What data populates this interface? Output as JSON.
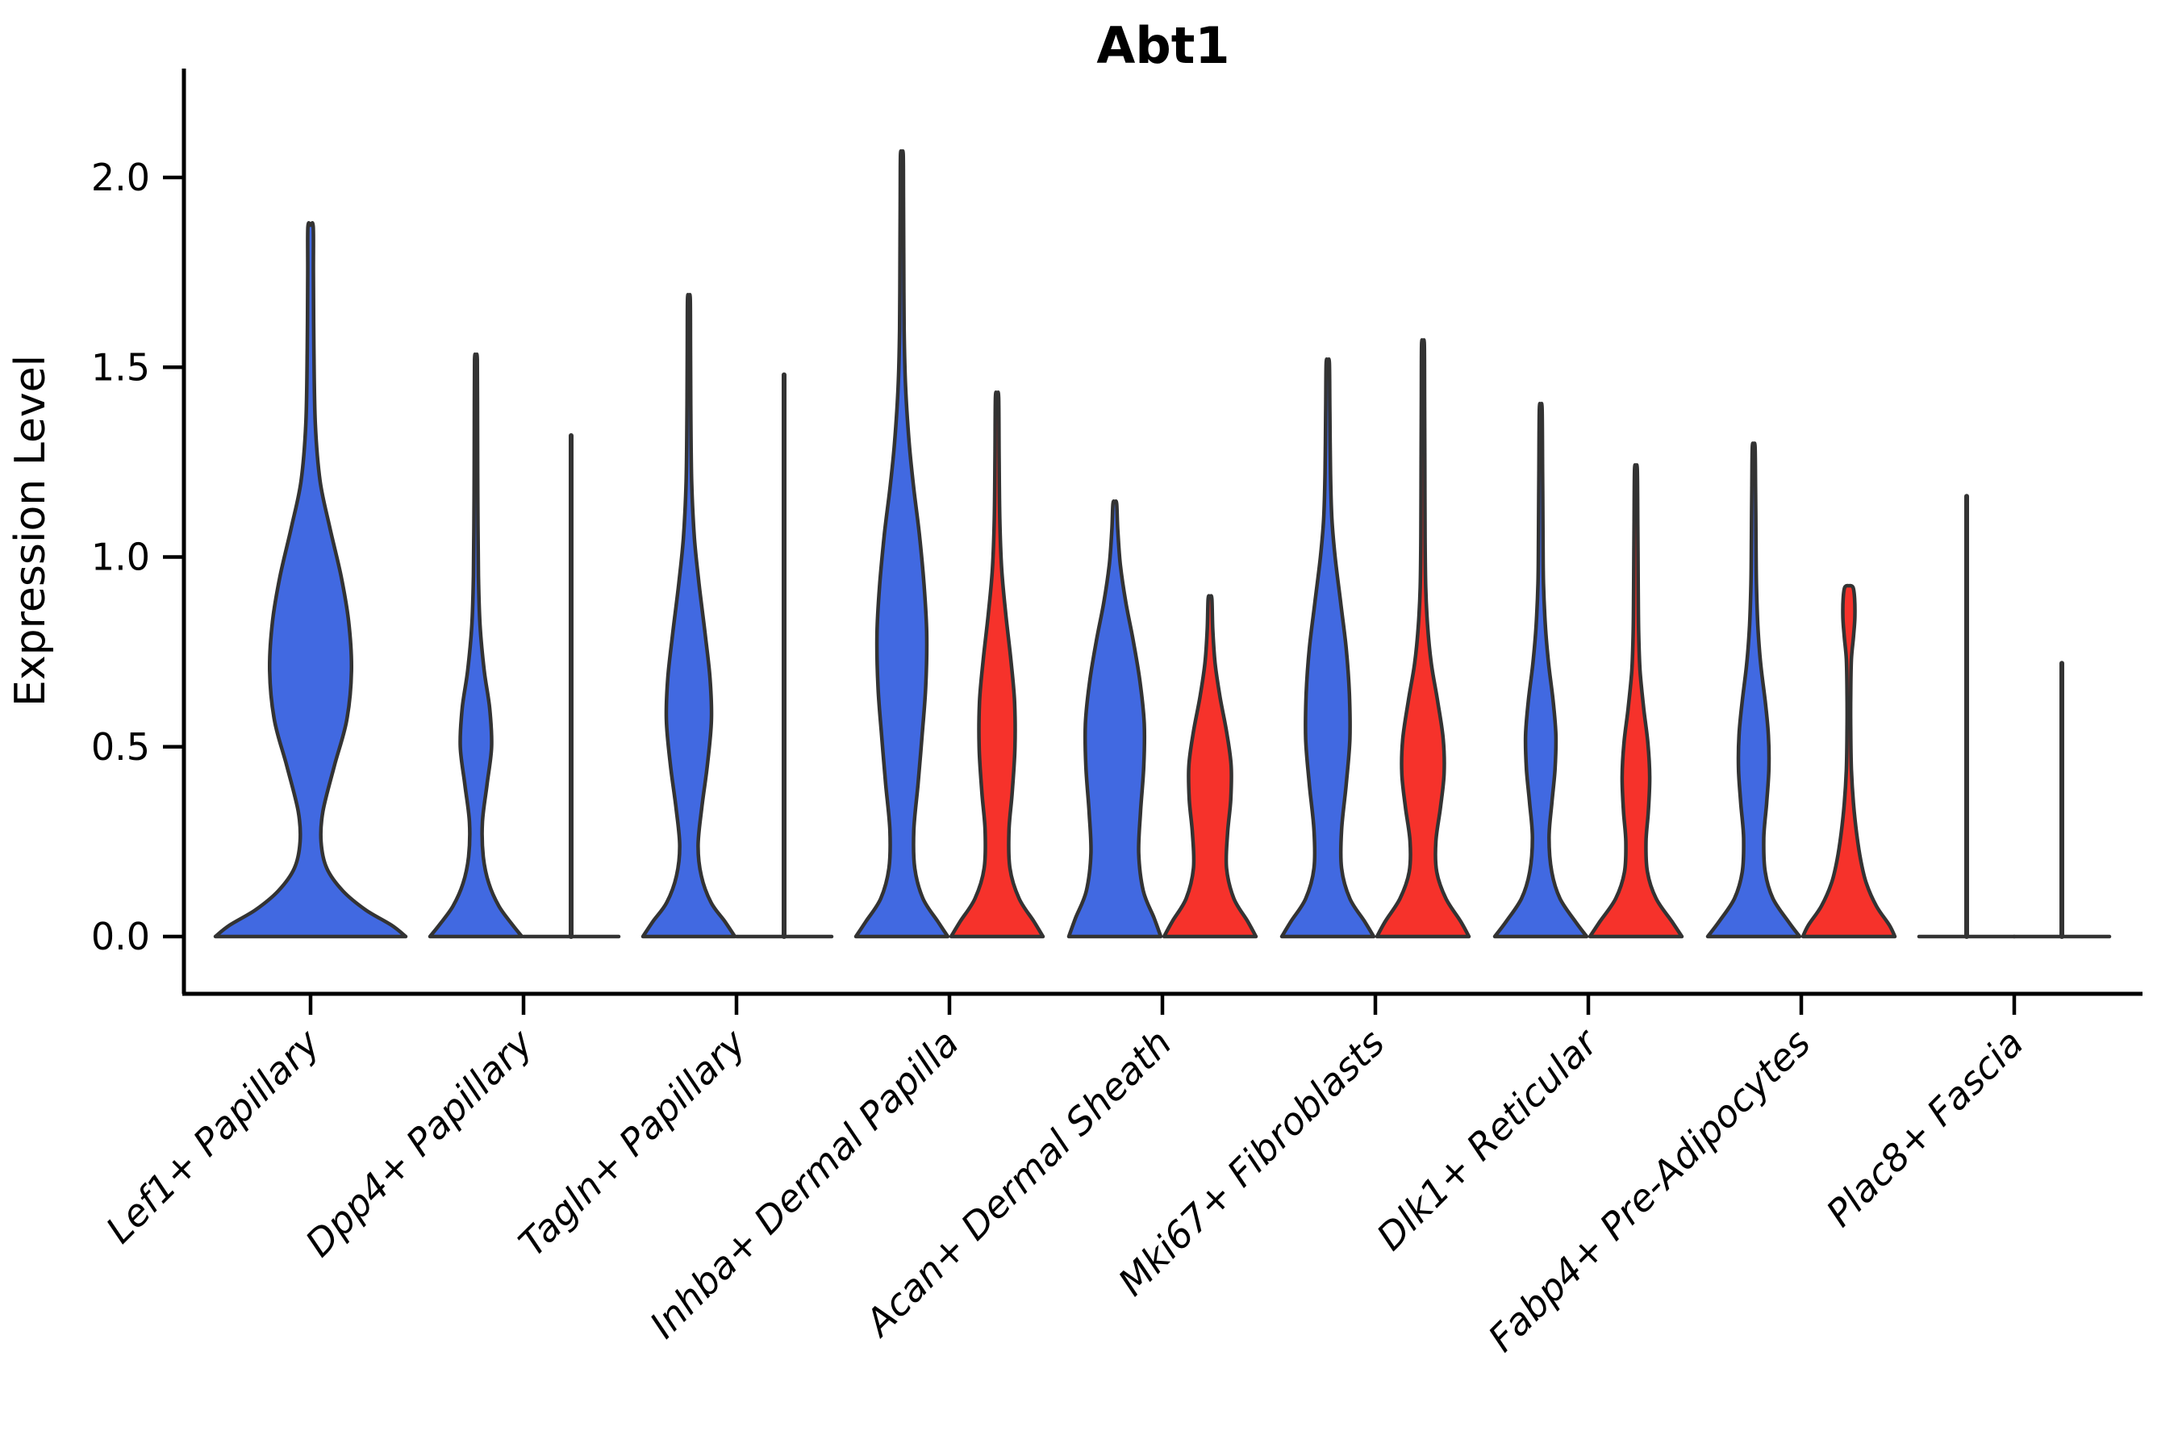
{
  "figure": {
    "background": "#ffffff"
  },
  "chart_data": {
    "type": "violin",
    "title": "Abt1",
    "ylabel": "Expression Level",
    "xlabel": "",
    "y_ticks": [
      "0.0",
      "0.5",
      "1.0",
      "1.5",
      "2.0"
    ],
    "y_tick_values": [
      0.0,
      0.5,
      1.0,
      1.5,
      2.0
    ],
    "ylim": [
      0.0,
      2.29
    ],
    "grid": false,
    "legend_position": "none",
    "categories": [
      "Lef1+ Papillary",
      "Dpp4+ Papillary",
      "Tagln+ Papillary",
      "Inhba+ Dermal Papilla",
      "Acan+ Dermal Sheath",
      "Mki67+ Fibroblasts",
      "Dlk1+ Reticular",
      "Fabp4+ Pre-Adipocytes",
      "Plac8+ Fascia"
    ],
    "series": [
      {
        "name": "blue",
        "color": "#4169E1"
      },
      {
        "name": "red",
        "color": "#F6322B"
      }
    ],
    "outline_color": "#333333",
    "axis_color": "#000000",
    "violins": [
      {
        "category": "Lef1+ Papillary",
        "series": "blue",
        "layout": "single",
        "collapsed": false,
        "max": 1.87,
        "profile": [
          [
            0,
            1.0
          ],
          [
            0.03,
            0.85
          ],
          [
            0.07,
            0.58
          ],
          [
            0.12,
            0.34
          ],
          [
            0.18,
            0.17
          ],
          [
            0.25,
            0.11
          ],
          [
            0.33,
            0.13
          ],
          [
            0.45,
            0.25
          ],
          [
            0.57,
            0.38
          ],
          [
            0.7,
            0.43
          ],
          [
            0.83,
            0.4
          ],
          [
            0.95,
            0.32
          ],
          [
            1.08,
            0.2
          ],
          [
            1.2,
            0.1
          ],
          [
            1.35,
            0.05
          ],
          [
            1.55,
            0.035
          ],
          [
            1.75,
            0.03
          ],
          [
            1.87,
            0.028
          ]
        ]
      },
      {
        "category": "Dpp4+ Papillary",
        "series": "blue",
        "layout": "left",
        "collapsed": false,
        "max": 1.52,
        "profile": [
          [
            0,
            1.0
          ],
          [
            0.03,
            0.8
          ],
          [
            0.08,
            0.5
          ],
          [
            0.14,
            0.28
          ],
          [
            0.21,
            0.16
          ],
          [
            0.3,
            0.14
          ],
          [
            0.4,
            0.24
          ],
          [
            0.5,
            0.34
          ],
          [
            0.6,
            0.3
          ],
          [
            0.7,
            0.18
          ],
          [
            0.82,
            0.09
          ],
          [
            0.95,
            0.055
          ],
          [
            1.15,
            0.04
          ],
          [
            1.35,
            0.035
          ],
          [
            1.52,
            0.03
          ]
        ]
      },
      {
        "category": "Dpp4+ Papillary",
        "series": "red",
        "layout": "right",
        "collapsed": true,
        "max": 1.32,
        "profile": []
      },
      {
        "category": "Tagln+ Papillary",
        "series": "blue",
        "layout": "left",
        "collapsed": false,
        "max": 1.68,
        "profile": [
          [
            0,
            1.0
          ],
          [
            0.04,
            0.78
          ],
          [
            0.09,
            0.48
          ],
          [
            0.16,
            0.27
          ],
          [
            0.24,
            0.2
          ],
          [
            0.34,
            0.28
          ],
          [
            0.45,
            0.4
          ],
          [
            0.57,
            0.49
          ],
          [
            0.68,
            0.46
          ],
          [
            0.8,
            0.35
          ],
          [
            0.93,
            0.22
          ],
          [
            1.05,
            0.12
          ],
          [
            1.2,
            0.06
          ],
          [
            1.4,
            0.04
          ],
          [
            1.55,
            0.035
          ],
          [
            1.68,
            0.03
          ]
        ]
      },
      {
        "category": "Tagln+ Papillary",
        "series": "red",
        "layout": "right",
        "collapsed": true,
        "max": 1.48,
        "profile": []
      },
      {
        "category": "Inhba+ Dermal Papilla",
        "series": "blue",
        "layout": "left",
        "collapsed": false,
        "max": 2.06,
        "profile": [
          [
            0,
            1.0
          ],
          [
            0.04,
            0.78
          ],
          [
            0.1,
            0.46
          ],
          [
            0.18,
            0.28
          ],
          [
            0.28,
            0.26
          ],
          [
            0.4,
            0.35
          ],
          [
            0.53,
            0.44
          ],
          [
            0.66,
            0.52
          ],
          [
            0.8,
            0.54
          ],
          [
            0.93,
            0.48
          ],
          [
            1.06,
            0.38
          ],
          [
            1.18,
            0.26
          ],
          [
            1.3,
            0.16
          ],
          [
            1.45,
            0.08
          ],
          [
            1.6,
            0.05
          ],
          [
            1.8,
            0.04
          ],
          [
            1.95,
            0.035
          ],
          [
            2.06,
            0.03
          ]
        ]
      },
      {
        "category": "Inhba+ Dermal Papilla",
        "series": "red",
        "layout": "right",
        "collapsed": false,
        "max": 1.42,
        "profile": [
          [
            0,
            1.0
          ],
          [
            0.04,
            0.8
          ],
          [
            0.1,
            0.48
          ],
          [
            0.18,
            0.28
          ],
          [
            0.28,
            0.26
          ],
          [
            0.38,
            0.33
          ],
          [
            0.5,
            0.39
          ],
          [
            0.62,
            0.38
          ],
          [
            0.73,
            0.3
          ],
          [
            0.85,
            0.19
          ],
          [
            0.97,
            0.1
          ],
          [
            1.1,
            0.06
          ],
          [
            1.25,
            0.045
          ],
          [
            1.42,
            0.035
          ]
        ]
      },
      {
        "category": "Acan+ Dermal Sheath",
        "series": "blue",
        "layout": "left",
        "collapsed": false,
        "max": 1.14,
        "profile": [
          [
            0,
            1.0
          ],
          [
            0.05,
            0.85
          ],
          [
            0.12,
            0.62
          ],
          [
            0.22,
            0.52
          ],
          [
            0.33,
            0.56
          ],
          [
            0.45,
            0.63
          ],
          [
            0.56,
            0.64
          ],
          [
            0.67,
            0.55
          ],
          [
            0.78,
            0.4
          ],
          [
            0.88,
            0.24
          ],
          [
            0.98,
            0.12
          ],
          [
            1.07,
            0.065
          ],
          [
            1.14,
            0.04
          ]
        ]
      },
      {
        "category": "Acan+ Dermal Sheath",
        "series": "red",
        "layout": "right",
        "collapsed": false,
        "max": 0.89,
        "profile": [
          [
            0,
            1.0
          ],
          [
            0.04,
            0.82
          ],
          [
            0.1,
            0.52
          ],
          [
            0.18,
            0.36
          ],
          [
            0.27,
            0.38
          ],
          [
            0.36,
            0.45
          ],
          [
            0.45,
            0.46
          ],
          [
            0.54,
            0.36
          ],
          [
            0.63,
            0.22
          ],
          [
            0.72,
            0.11
          ],
          [
            0.81,
            0.06
          ],
          [
            0.89,
            0.04
          ]
        ]
      },
      {
        "category": "Mki67+ Fibroblasts",
        "series": "blue",
        "layout": "left",
        "collapsed": false,
        "max": 1.51,
        "profile": [
          [
            0,
            1.0
          ],
          [
            0.04,
            0.8
          ],
          [
            0.1,
            0.48
          ],
          [
            0.18,
            0.3
          ],
          [
            0.28,
            0.3
          ],
          [
            0.4,
            0.4
          ],
          [
            0.52,
            0.48
          ],
          [
            0.64,
            0.47
          ],
          [
            0.76,
            0.4
          ],
          [
            0.88,
            0.28
          ],
          [
            1.0,
            0.16
          ],
          [
            1.1,
            0.09
          ],
          [
            1.22,
            0.06
          ],
          [
            1.38,
            0.045
          ],
          [
            1.51,
            0.035
          ]
        ]
      },
      {
        "category": "Mki67+ Fibroblasts",
        "series": "red",
        "layout": "right",
        "collapsed": false,
        "max": 1.56,
        "profile": [
          [
            0,
            1.0
          ],
          [
            0.04,
            0.82
          ],
          [
            0.1,
            0.5
          ],
          [
            0.17,
            0.3
          ],
          [
            0.25,
            0.28
          ],
          [
            0.34,
            0.38
          ],
          [
            0.43,
            0.46
          ],
          [
            0.52,
            0.44
          ],
          [
            0.62,
            0.32
          ],
          [
            0.72,
            0.18
          ],
          [
            0.82,
            0.1
          ],
          [
            0.92,
            0.06
          ],
          [
            1.05,
            0.045
          ],
          [
            1.25,
            0.04
          ],
          [
            1.42,
            0.035
          ],
          [
            1.56,
            0.03
          ]
        ]
      },
      {
        "category": "Dlk1+ Reticular",
        "series": "blue",
        "layout": "left",
        "collapsed": false,
        "max": 1.39,
        "profile": [
          [
            0,
            1.0
          ],
          [
            0.04,
            0.75
          ],
          [
            0.1,
            0.42
          ],
          [
            0.17,
            0.24
          ],
          [
            0.26,
            0.18
          ],
          [
            0.35,
            0.24
          ],
          [
            0.44,
            0.31
          ],
          [
            0.53,
            0.33
          ],
          [
            0.62,
            0.27
          ],
          [
            0.72,
            0.17
          ],
          [
            0.82,
            0.1
          ],
          [
            0.93,
            0.06
          ],
          [
            1.05,
            0.05
          ],
          [
            1.22,
            0.04
          ],
          [
            1.39,
            0.03
          ]
        ]
      },
      {
        "category": "Dlk1+ Reticular",
        "series": "red",
        "layout": "right",
        "collapsed": false,
        "max": 1.23,
        "profile": [
          [
            0,
            1.0
          ],
          [
            0.04,
            0.78
          ],
          [
            0.1,
            0.44
          ],
          [
            0.17,
            0.25
          ],
          [
            0.25,
            0.22
          ],
          [
            0.33,
            0.27
          ],
          [
            0.42,
            0.3
          ],
          [
            0.51,
            0.26
          ],
          [
            0.6,
            0.17
          ],
          [
            0.7,
            0.09
          ],
          [
            0.8,
            0.06
          ],
          [
            0.92,
            0.05
          ],
          [
            1.08,
            0.04
          ],
          [
            1.23,
            0.03
          ]
        ]
      },
      {
        "category": "Fabp4+ Pre-Adipocytes",
        "series": "blue",
        "layout": "left",
        "collapsed": false,
        "max": 1.29,
        "profile": [
          [
            0,
            1.0
          ],
          [
            0.04,
            0.75
          ],
          [
            0.1,
            0.42
          ],
          [
            0.17,
            0.25
          ],
          [
            0.26,
            0.22
          ],
          [
            0.35,
            0.28
          ],
          [
            0.44,
            0.33
          ],
          [
            0.53,
            0.32
          ],
          [
            0.62,
            0.25
          ],
          [
            0.72,
            0.15
          ],
          [
            0.82,
            0.09
          ],
          [
            0.93,
            0.06
          ],
          [
            1.05,
            0.05
          ],
          [
            1.18,
            0.04
          ],
          [
            1.29,
            0.03
          ]
        ]
      },
      {
        "category": "Fabp4+ Pre-Adipocytes",
        "series": "red",
        "layout": "right",
        "collapsed": false,
        "max": 0.92,
        "profile": [
          [
            0,
            1.0
          ],
          [
            0.03,
            0.88
          ],
          [
            0.08,
            0.6
          ],
          [
            0.14,
            0.38
          ],
          [
            0.2,
            0.26
          ],
          [
            0.27,
            0.17
          ],
          [
            0.35,
            0.1
          ],
          [
            0.44,
            0.055
          ],
          [
            0.54,
            0.04
          ],
          [
            0.64,
            0.04
          ],
          [
            0.73,
            0.055
          ],
          [
            0.79,
            0.1
          ],
          [
            0.84,
            0.13
          ],
          [
            0.89,
            0.125
          ],
          [
            0.92,
            0.09
          ]
        ]
      },
      {
        "category": "Plac8+ Fascia",
        "series": "blue",
        "layout": "left",
        "collapsed": true,
        "max": 1.16,
        "profile": []
      },
      {
        "category": "Plac8+ Fascia",
        "series": "red",
        "layout": "right",
        "collapsed": true,
        "max": 0.72,
        "profile": []
      }
    ]
  }
}
